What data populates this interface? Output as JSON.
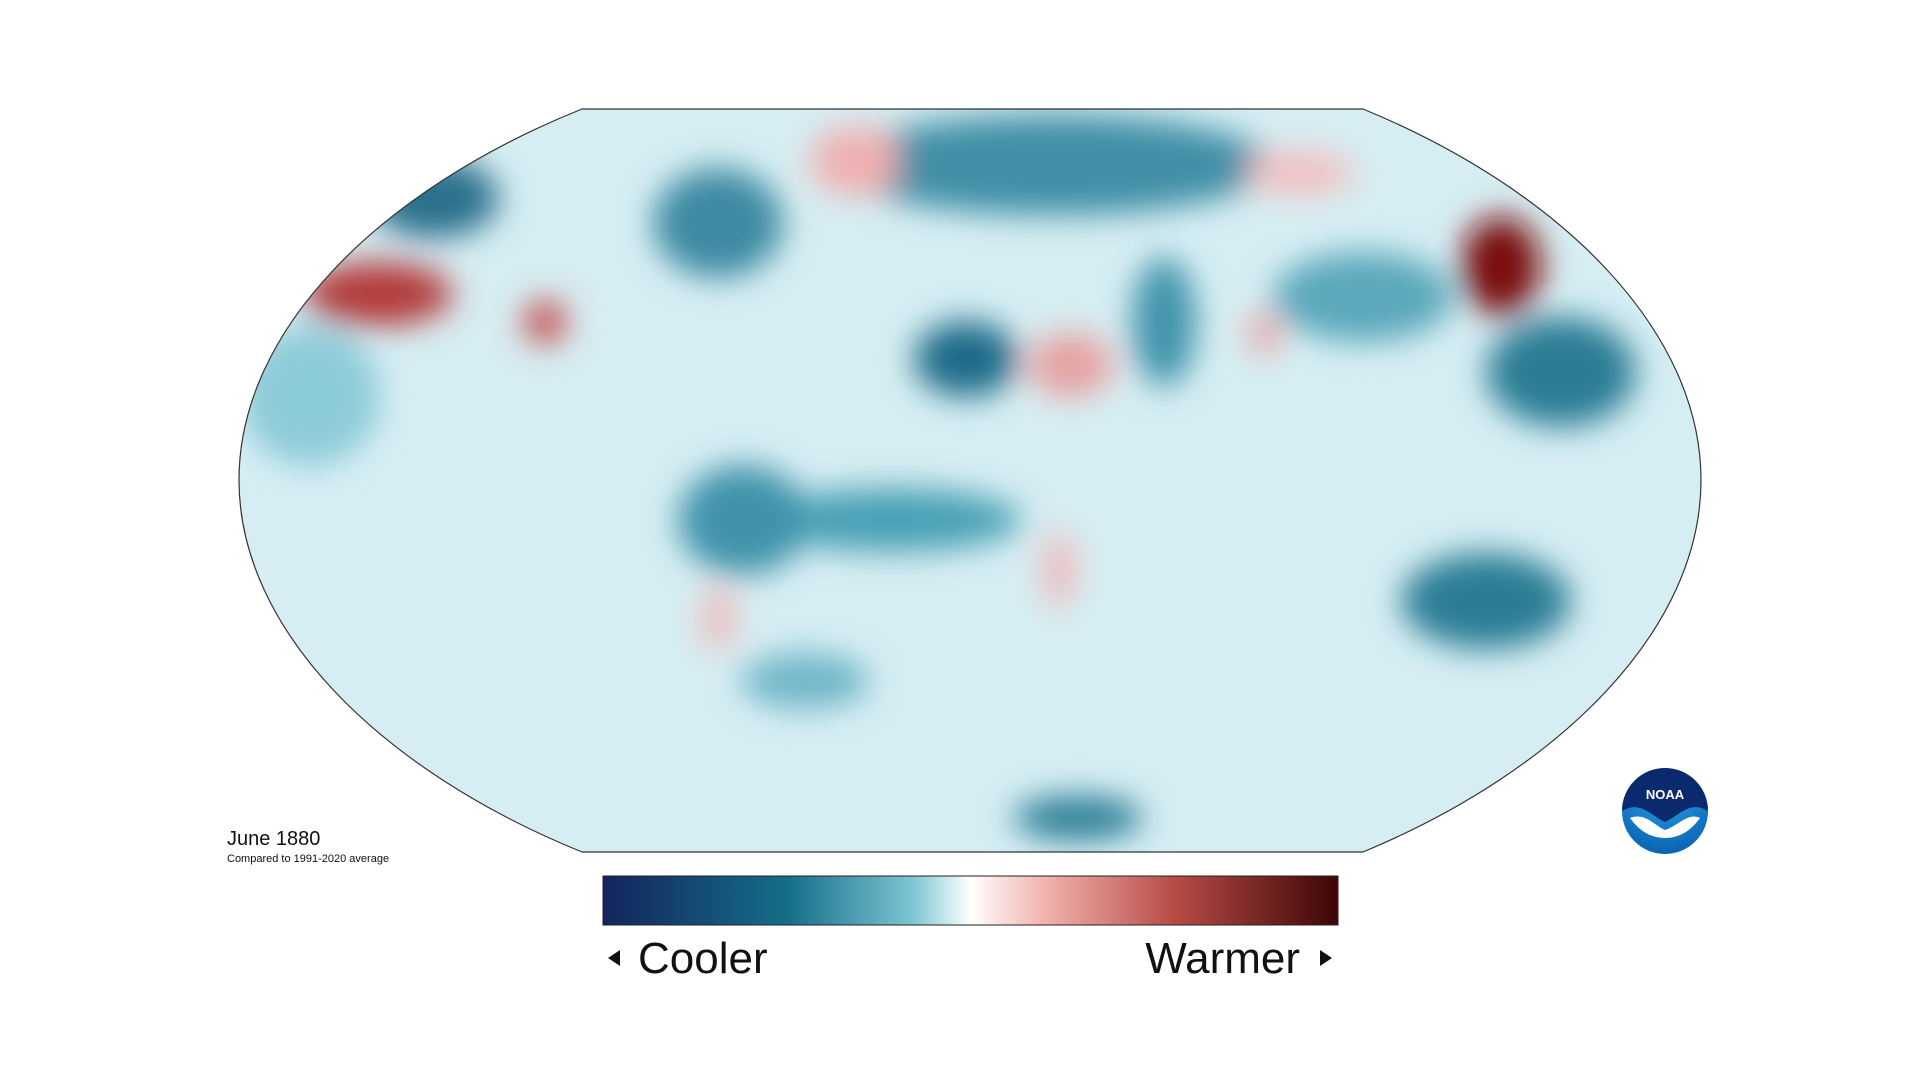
{
  "caption": {
    "title": "June 1880",
    "subtitle": "Compared to 1991-2020 average"
  },
  "legend": {
    "low": "Cooler",
    "high": "Warmer"
  },
  "logo": "NOAA"
}
